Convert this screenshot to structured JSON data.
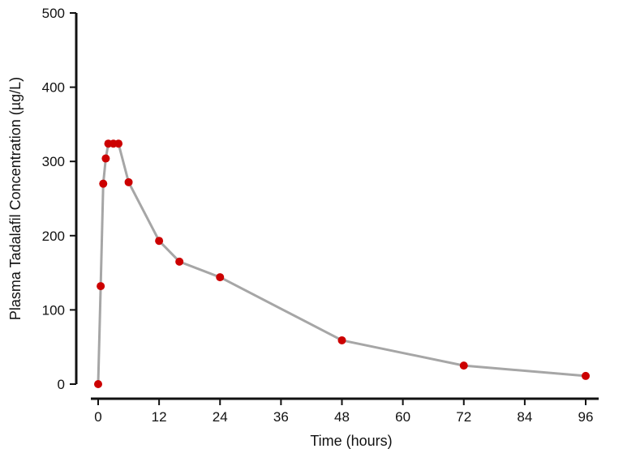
{
  "chart_data": {
    "type": "line",
    "title": "",
    "xlabel": "Time (hours)",
    "ylabel": "Plasma Tadalafil Concentration (µg/L)",
    "xlim": [
      0,
      96
    ],
    "ylim": [
      0,
      500
    ],
    "xticks": [
      0,
      12,
      24,
      36,
      48,
      60,
      72,
      84,
      96
    ],
    "yticks": [
      0,
      100,
      200,
      300,
      400,
      500
    ],
    "grid": false,
    "colors": {
      "line": "#a6a6a6",
      "marker": "#cc0000",
      "axis": "#111111"
    },
    "series": [
      {
        "x": [
          0,
          0.5,
          1,
          1.5,
          2,
          3,
          4,
          6,
          12,
          16,
          24,
          48,
          72,
          96
        ],
        "y": [
          0,
          132,
          270,
          304,
          324,
          324,
          324,
          272,
          193,
          165,
          144,
          59,
          25,
          11
        ]
      }
    ]
  }
}
